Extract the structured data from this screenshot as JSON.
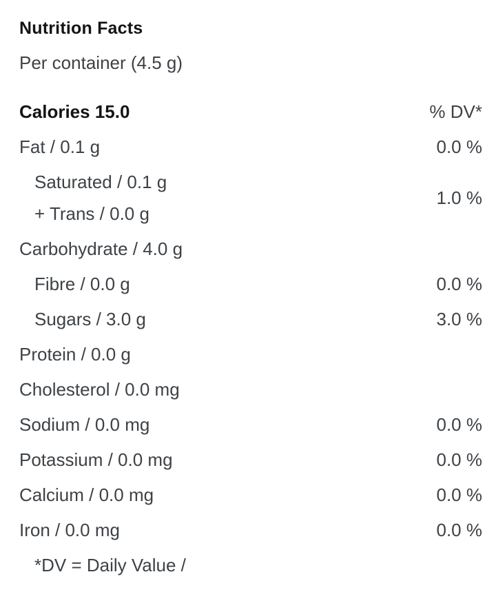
{
  "label": {
    "title": "Nutrition Facts",
    "serving": "Per container (4.5 g)",
    "header": {
      "calories": "Calories 15.0",
      "dv_header": "% DV*"
    },
    "rows": [
      {
        "name": "Fat / 0.1 g",
        "dv": "0.0 %"
      },
      {
        "name": "Saturated / 0.1 g",
        "name2": "+ Trans / 0.0 g",
        "dv": "1.0 %"
      },
      {
        "name": "Carbohydrate / 4.0 g",
        "dv": ""
      },
      {
        "name": "Fibre / 0.0 g",
        "dv": "0.0 %"
      },
      {
        "name": "Sugars / 3.0 g",
        "dv": "3.0 %"
      },
      {
        "name": "Protein / 0.0 g",
        "dv": ""
      },
      {
        "name": "Cholesterol / 0.0 mg",
        "dv": ""
      },
      {
        "name": "Sodium / 0.0 mg",
        "dv": "0.0 %"
      },
      {
        "name": "Potassium / 0.0 mg",
        "dv": "0.0 %"
      },
      {
        "name": "Calcium / 0.0 mg",
        "dv": "0.0 %"
      },
      {
        "name": "Iron / 0.0 mg",
        "dv": "0.0 %"
      }
    ],
    "footnote": "*DV = Daily Value /",
    "colors": {
      "heading_text": "#141414",
      "body_text": "#3e4246",
      "background": "#ffffff"
    }
  }
}
